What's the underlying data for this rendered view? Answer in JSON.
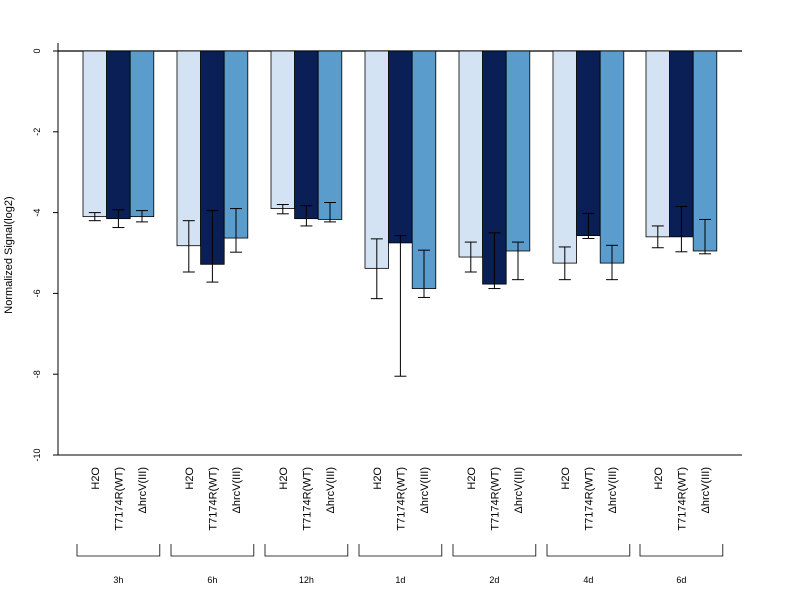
{
  "chart_data": {
    "type": "bar",
    "title": "",
    "xlabel": "",
    "ylabel": "Normalized Signal(log2)",
    "ylim": [
      -10,
      0
    ],
    "yticks": [
      0,
      -2,
      -4,
      -6,
      -8,
      -10
    ],
    "grid": false,
    "categories": [
      "3h",
      "6h",
      "12h",
      "1d",
      "2d",
      "4d",
      "6d"
    ],
    "series": [
      {
        "name": "H2O",
        "color": "#d4e3f3",
        "values": [
          -4.1,
          -4.82,
          -3.9,
          -5.38,
          -5.1,
          -5.25,
          -4.6
        ],
        "err_low": [
          -4.2,
          -5.47,
          -4.03,
          -6.13,
          -5.47,
          -5.66,
          -4.87
        ],
        "err_high": [
          -4.0,
          -4.2,
          -3.8,
          -4.65,
          -4.73,
          -4.85,
          -4.33
        ]
      },
      {
        "name": "T7174R(WT)",
        "color": "#0a1f55",
        "values": [
          -4.15,
          -5.28,
          -4.15,
          -4.75,
          -5.77,
          -4.57,
          -4.6
        ],
        "err_low": [
          -4.37,
          -5.72,
          -4.33,
          -8.05,
          -5.88,
          -4.64,
          -4.97
        ],
        "err_high": [
          -3.93,
          -3.95,
          -3.83,
          -4.57,
          -4.5,
          -4.02,
          -3.85
        ]
      },
      {
        "name": "ΔhrcV(III)",
        "color": "#5a9ccc",
        "values": [
          -4.1,
          -4.63,
          -4.17,
          -5.88,
          -4.95,
          -5.25,
          -4.95
        ],
        "err_low": [
          -4.23,
          -4.98,
          -4.23,
          -6.1,
          -5.66,
          -5.66,
          -5.02
        ],
        "err_high": [
          -3.95,
          -3.9,
          -3.75,
          -4.93,
          -4.73,
          -4.81,
          -4.17
        ]
      }
    ]
  }
}
